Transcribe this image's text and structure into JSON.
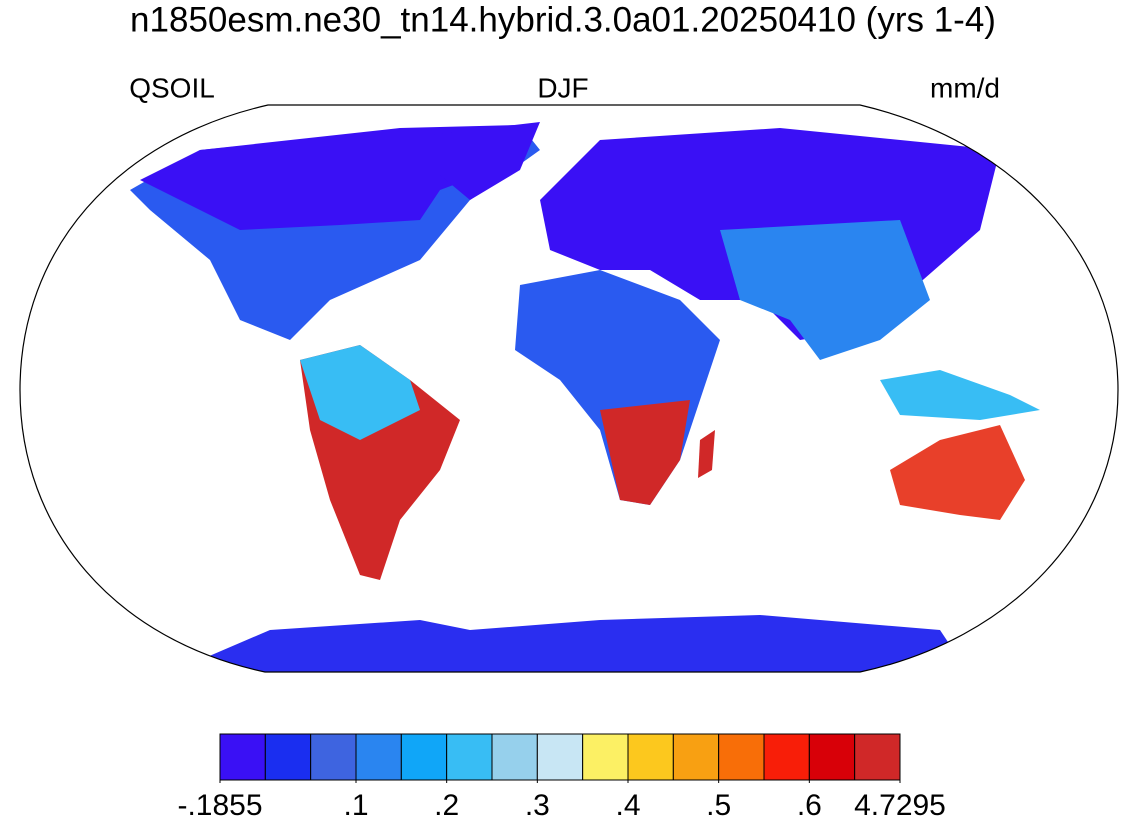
{
  "header": {
    "title": "n1850esm.ne30_tn14.hybrid.3.0a01.20250410 (yrs 1-4)",
    "left": "QSOIL",
    "center": "DJF",
    "right": "mm/d"
  },
  "colorbar": {
    "colors": [
      "#3a10f5",
      "#1a2ef0",
      "#3e64e0",
      "#2a85f0",
      "#10a6f8",
      "#38bdf4",
      "#96d0ec",
      "#c8e6f4",
      "#fcf064",
      "#fcc81e",
      "#f8a012",
      "#f86e08",
      "#f81e08",
      "#d80008",
      "#d02828"
    ],
    "levels": [
      -0.1855,
      0,
      0.05,
      0.1,
      0.15,
      0.2,
      0.25,
      0.3,
      0.35,
      0.4,
      0.45,
      0.5,
      0.55,
      0.6,
      0.65,
      4.7295
    ],
    "ticks": [
      {
        "value": -0.1855,
        "label": "-.1855"
      },
      {
        "value": 0.1,
        "label": ".1"
      },
      {
        "value": 0.2,
        "label": ".2"
      },
      {
        "value": 0.3,
        "label": ".3"
      },
      {
        "value": 0.4,
        "label": ".4"
      },
      {
        "value": 0.5,
        "label": ".5"
      },
      {
        "value": 0.6,
        "label": ".6"
      },
      {
        "value": 4.7295,
        "label": "4.7295"
      }
    ]
  }
}
